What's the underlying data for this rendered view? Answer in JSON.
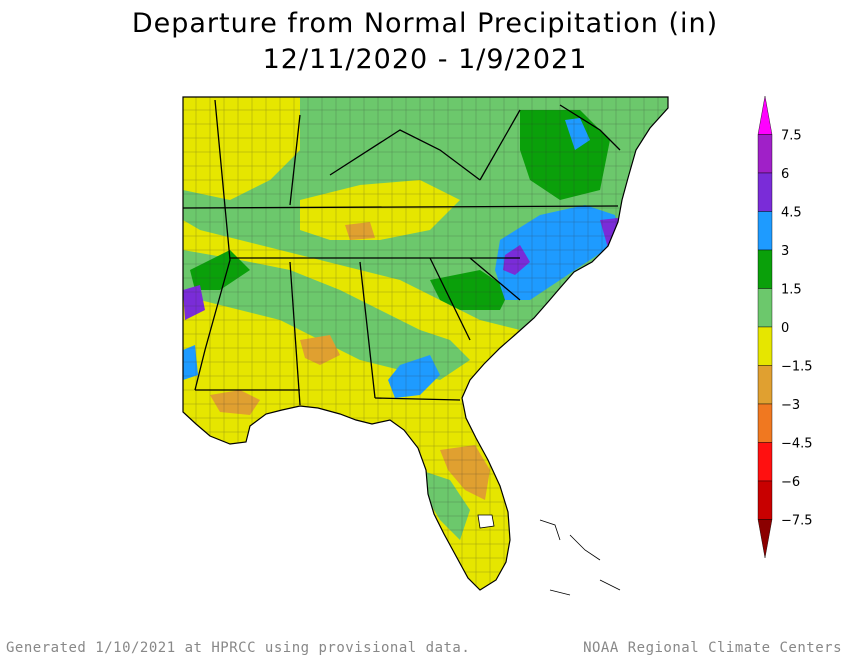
{
  "title": {
    "line1": "Departure from Normal Precipitation (in)",
    "line2": "12/11/2020 - 1/9/2021"
  },
  "legend": {
    "labels": [
      "7.5",
      "6",
      "4.5",
      "3",
      "1.5",
      "0",
      "−1.5",
      "−3",
      "−4.5",
      "−6",
      "−7.5"
    ],
    "bins": [
      {
        "color": "#ff00ff"
      },
      {
        "color": "#a020c8"
      },
      {
        "color": "#7a2cd8"
      },
      {
        "color": "#1e9bff"
      },
      {
        "color": "#0aa00a"
      },
      {
        "color": "#6cc86c"
      },
      {
        "color": "#e6e600"
      },
      {
        "color": "#e0a030"
      },
      {
        "color": "#f07820"
      },
      {
        "color": "#ff1010"
      },
      {
        "color": "#c80000"
      },
      {
        "color": "#8b0000"
      }
    ]
  },
  "map_colors": {
    "water": "#ffffff",
    "borders": "#000000",
    "county_lines": "#333333"
  },
  "footer": {
    "left": "Generated 1/10/2021 at HPRCC using provisional data.",
    "right": "NOAA Regional Climate Centers"
  }
}
